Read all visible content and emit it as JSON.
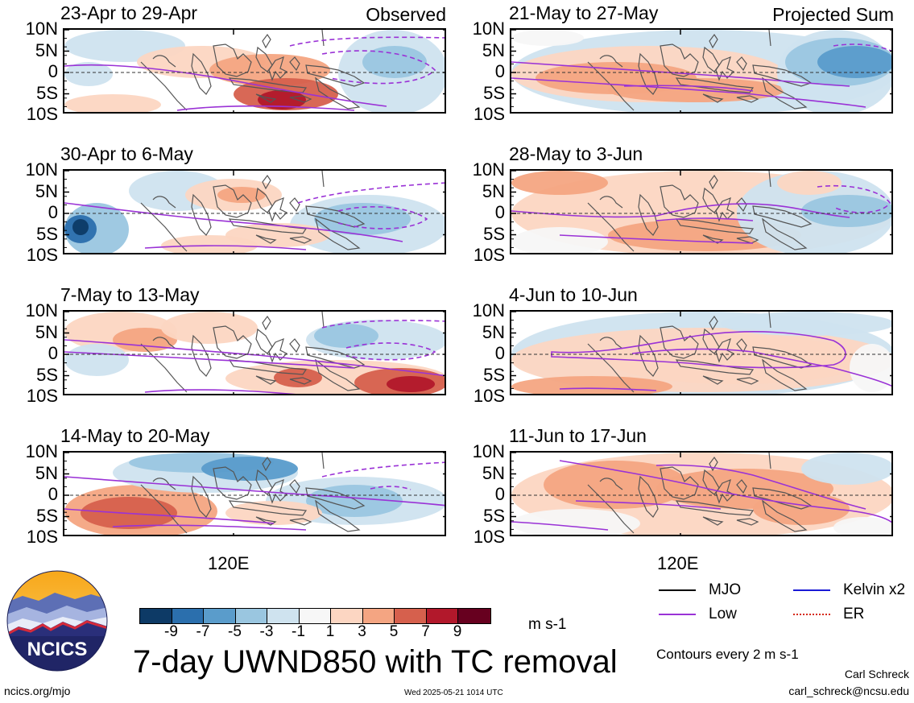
{
  "panels": [
    {
      "title": "23-Apr to 29-Apr",
      "corner": "Observed",
      "kind": "obs1"
    },
    {
      "title": "30-Apr to 6-May",
      "corner": "",
      "kind": "obs2"
    },
    {
      "title": "7-May to 13-May",
      "corner": "",
      "kind": "obs3"
    },
    {
      "title": "14-May to 20-May",
      "corner": "",
      "kind": "obs4"
    },
    {
      "title": "21-May to 27-May",
      "corner": "Projected Sum",
      "kind": "prj1"
    },
    {
      "title": "28-May to 3-Jun",
      "corner": "",
      "kind": "prj2"
    },
    {
      "title": "4-Jun to 10-Jun",
      "corner": "",
      "kind": "prj3"
    },
    {
      "title": "11-Jun to 17-Jun",
      "corner": "",
      "kind": "prj4"
    }
  ],
  "y_ticks": [
    "10N",
    "5N",
    "0",
    "5S",
    "10S"
  ],
  "x_tick": "120E",
  "colorbar": {
    "colors": [
      "#0d3a66",
      "#2b6fad",
      "#5a9ccb",
      "#9ac6e0",
      "#cfe3ef",
      "#f7f7f7",
      "#fcd6c2",
      "#f4a582",
      "#d6604d",
      "#b2182b",
      "#67001f"
    ],
    "labels": [
      "-9",
      "-7",
      "-5",
      "-3",
      "-1",
      "1",
      "3",
      "5",
      "7",
      "9"
    ],
    "units": "m s-1"
  },
  "title": "7-day UWND850 with TC removal",
  "legend": [
    {
      "label": "MJO",
      "color": "#000000"
    },
    {
      "label": "Kelvin x2",
      "color": "#1a1ad6"
    },
    {
      "label": "Low",
      "color": "#9a32d6"
    },
    {
      "label": "ER",
      "color": "#d62a1a"
    }
  ],
  "contour_note": "Contours every 2 m s-1",
  "author": "Carl Schreck",
  "email": "carl_schreck@ncsu.edu",
  "site": "ncics.org/mjo",
  "timestamp": "Wed 2025-05-21 1014 UTC",
  "logo_text": "NCICS",
  "chart_data": {
    "type": "heatmap",
    "variable": "7-day UWND850 with TC removal",
    "units": "m s-1",
    "y_axis": [
      "10N",
      "5N",
      "0",
      "5S",
      "10S"
    ],
    "x_axis_label": "120E",
    "levels": [
      -9,
      -7,
      -5,
      -3,
      -1,
      1,
      3,
      5,
      7,
      9
    ],
    "contour_interval": 2
  }
}
